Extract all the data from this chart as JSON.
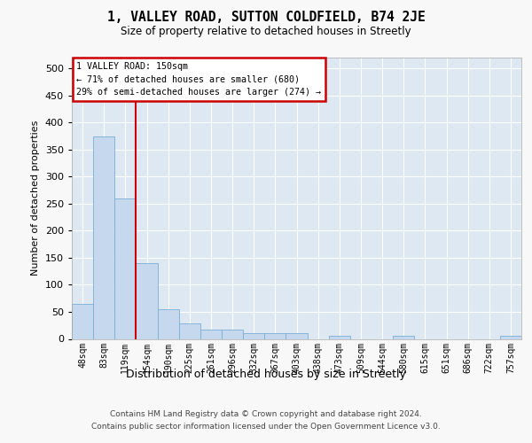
{
  "title": "1, VALLEY ROAD, SUTTON COLDFIELD, B74 2JE",
  "subtitle": "Size of property relative to detached houses in Streetly",
  "xlabel": "Distribution of detached houses by size in Streetly",
  "ylabel": "Number of detached properties",
  "bar_labels": [
    "48sqm",
    "83sqm",
    "119sqm",
    "154sqm",
    "190sqm",
    "225sqm",
    "261sqm",
    "296sqm",
    "332sqm",
    "367sqm",
    "403sqm",
    "438sqm",
    "473sqm",
    "509sqm",
    "544sqm",
    "580sqm",
    "615sqm",
    "651sqm",
    "686sqm",
    "722sqm",
    "757sqm"
  ],
  "bar_heights": [
    65,
    375,
    260,
    140,
    55,
    28,
    18,
    18,
    10,
    10,
    10,
    0,
    5,
    0,
    0,
    5,
    0,
    0,
    0,
    0,
    5
  ],
  "bar_color": "#c5d8ed",
  "bar_edgecolor": "#7aafd4",
  "vline_x": 2.5,
  "vline_color": "#cc0000",
  "ann_title": "1 VALLEY ROAD: 150sqm",
  "ann_line1": "← 71% of detached houses are smaller (680)",
  "ann_line2": "29% of semi-detached houses are larger (274) →",
  "ann_box_fc": "#ffffff",
  "ann_box_ec": "#cc0000",
  "ylim": [
    0,
    520
  ],
  "yticks": [
    0,
    50,
    100,
    150,
    200,
    250,
    300,
    350,
    400,
    450,
    500
  ],
  "bg_color": "#dce6f0",
  "plot_bg": "#dde8f3",
  "grid_color": "#ffffff",
  "fig_bg": "#f8f8f8",
  "footer1": "Contains HM Land Registry data © Crown copyright and database right 2024.",
  "footer2": "Contains public sector information licensed under the Open Government Licence v3.0."
}
